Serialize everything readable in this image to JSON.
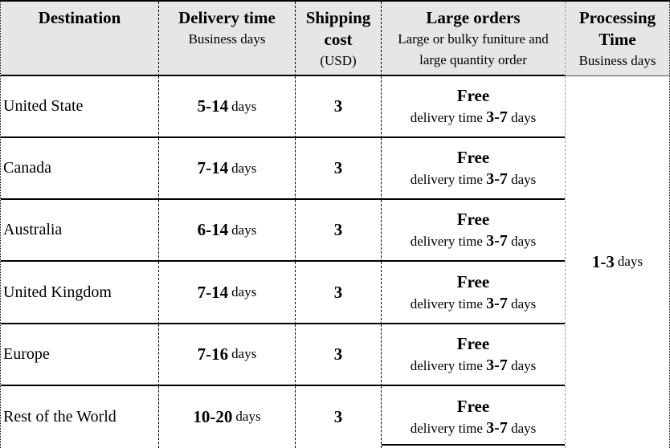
{
  "colors": {
    "header_bg": "#e6e6e6",
    "line": "#000000",
    "gray_line": "#9a9a9a"
  },
  "header": {
    "destination": "Destination",
    "delivery_title": "Delivery time",
    "delivery_sub": "Business days",
    "shipping_title": "Shipping cost",
    "shipping_sub": "(USD)",
    "large_title": "Large orders",
    "large_sub": "Large or bulky funiture and large quantity order",
    "processing_title": "Processing Time",
    "processing_sub": "Business days"
  },
  "rows": [
    {
      "destination": "United State",
      "delivery_value": "5-14",
      "delivery_unit": "days",
      "cost": "3",
      "large_main": "Free",
      "large_prefix": "delivery time",
      "large_value": "3-7",
      "large_unit": "days"
    },
    {
      "destination": "Canada",
      "delivery_value": "7-14",
      "delivery_unit": "days",
      "cost": "3",
      "large_main": "Free",
      "large_prefix": "delivery time",
      "large_value": "3-7",
      "large_unit": "days"
    },
    {
      "destination": "Australia",
      "delivery_value": "6-14",
      "delivery_unit": "days",
      "cost": "3",
      "large_main": "Free",
      "large_prefix": "delivery time",
      "large_value": "3-7",
      "large_unit": "days"
    },
    {
      "destination": "United Kingdom",
      "delivery_value": "7-14",
      "delivery_unit": "days",
      "cost": "3",
      "large_main": "Free",
      "large_prefix": "delivery time",
      "large_value": "3-7",
      "large_unit": "days"
    },
    {
      "destination": "Europe",
      "delivery_value": "7-16",
      "delivery_unit": "days",
      "cost": "3",
      "large_main": "Free",
      "large_prefix": "delivery time",
      "large_value": "3-7",
      "large_unit": "days"
    },
    {
      "destination": "Rest of the World",
      "delivery_value": "10-20",
      "delivery_unit": "days",
      "cost": "3",
      "large_main": "Free",
      "large_prefix": "delivery time",
      "large_value": "3-7",
      "large_unit": "days"
    }
  ],
  "processing": {
    "value": "1-3",
    "unit": "days"
  }
}
